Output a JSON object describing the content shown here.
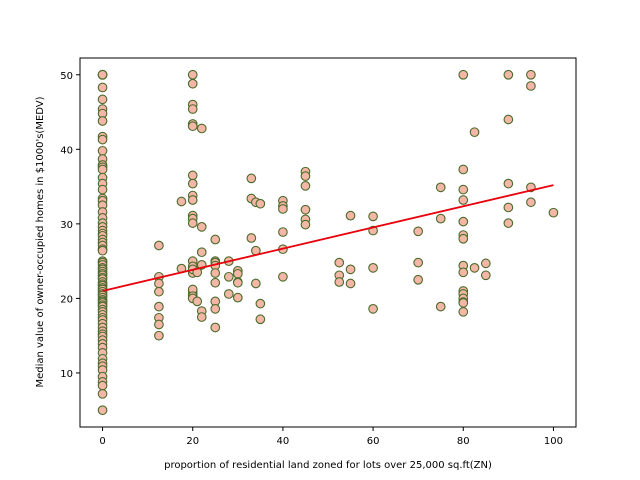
{
  "chart_data": {
    "type": "scatter",
    "title": "",
    "xlabel": "proportion of residential land zoned for lots over 25,000 sq.ft(ZN)",
    "ylabel": "Median value of owner-occupied homes in $1000's(MEDV)",
    "xlim": [
      -5,
      105
    ],
    "ylim": [
      2.75,
      52.25
    ],
    "xticks": [
      0,
      20,
      40,
      60,
      80,
      100
    ],
    "yticks": [
      10,
      20,
      30,
      40,
      50
    ],
    "grid": false,
    "legend": "none",
    "colors": {
      "marker_fill": "#f4b6a6",
      "marker_edge": "#4a6b2a",
      "fit_line": "#e8000b"
    },
    "series": [
      {
        "kind": "points",
        "x": [
          0,
          0,
          0,
          0,
          0,
          0,
          0,
          0,
          0,
          0,
          0,
          0,
          0,
          0,
          0,
          0,
          0,
          0,
          0,
          0,
          0,
          0,
          0,
          0,
          0,
          0,
          0,
          0,
          0,
          0,
          0,
          0,
          0,
          0,
          0,
          0,
          0,
          0,
          0,
          0,
          0,
          0,
          0,
          0,
          0,
          0,
          0,
          0,
          0,
          0,
          0,
          0,
          0,
          0,
          0,
          0,
          0,
          0,
          0,
          0,
          0,
          0,
          0,
          0,
          0,
          0,
          0,
          0,
          0,
          0,
          0,
          0,
          0,
          0,
          0,
          0,
          0,
          0,
          0,
          0,
          12.5,
          12.5,
          12.5,
          12.5,
          12.5,
          12.5,
          12.5,
          12.5,
          17.5,
          17.5,
          20,
          20,
          20,
          20,
          20,
          20,
          20,
          20,
          20,
          20,
          20,
          20,
          20,
          20,
          20,
          20,
          20,
          20,
          20,
          20,
          20,
          20,
          20,
          21,
          21,
          22,
          22,
          22,
          22,
          22,
          22,
          25,
          25,
          25,
          25,
          25,
          25,
          25,
          25,
          25,
          28,
          28,
          28,
          30,
          30,
          30,
          30,
          30,
          33,
          33,
          33,
          34,
          34,
          34,
          35,
          35,
          35,
          40,
          40,
          40,
          40,
          40,
          40,
          45,
          45,
          45,
          45,
          45,
          45,
          52.5,
          52.5,
          52.5,
          55,
          55,
          55,
          60,
          60,
          60,
          60,
          70,
          70,
          70,
          75,
          75,
          75,
          80,
          80,
          80,
          80,
          80,
          80,
          80,
          80,
          80,
          80,
          80,
          80,
          80,
          80,
          80,
          82.5,
          82.5,
          85,
          85,
          90,
          90,
          90,
          90,
          90,
          95,
          95,
          95,
          95,
          100
        ],
        "y": [
          50,
          50,
          50,
          48.3,
          46.7,
          45.4,
          44.8,
          43.8,
          41.7,
          41.3,
          39.8,
          38.7,
          37.9,
          37.6,
          37.3,
          36.2,
          35.4,
          34.6,
          33.4,
          33.1,
          32.5,
          31.6,
          30.8,
          30.1,
          29.6,
          29.1,
          28.7,
          28.4,
          27.9,
          27.5,
          27.1,
          26.6,
          26.4,
          25.0,
          24.8,
          24.5,
          24.1,
          23.9,
          23.6,
          23.3,
          23.1,
          22.8,
          22.6,
          22.2,
          21.9,
          21.7,
          21.4,
          21.2,
          20.9,
          20.6,
          20.4,
          20.1,
          19.8,
          19.6,
          19.4,
          19.1,
          18.9,
          18.5,
          18.2,
          17.8,
          17.4,
          17.1,
          16.6,
          16.1,
          15.6,
          15.2,
          14.9,
          14.4,
          13.9,
          13.4,
          12.7,
          11.9,
          11.3,
          10.9,
          10.4,
          9.5,
          8.8,
          8.3,
          7.2,
          5.0,
          27.1,
          22.9,
          22.0,
          20.9,
          18.9,
          17.4,
          16.5,
          15.0,
          33.0,
          24.0,
          50,
          48.8,
          46.0,
          45.4,
          43.4,
          43.1,
          36.5,
          35.4,
          33.8,
          31.1,
          30.7,
          30.1,
          25.0,
          24.1,
          23.4,
          21.0,
          20.5,
          33.2,
          24.3,
          23.9,
          21.2,
          20.3,
          20.0,
          23.5,
          19.6,
          42.8,
          29.6,
          26.2,
          18.3,
          17.5,
          24.5,
          27.9,
          25.0,
          24.8,
          24.4,
          23.4,
          22.1,
          19.6,
          18.6,
          16.1,
          25.0,
          22.9,
          20.6,
          23.7,
          23.3,
          22.2,
          22.1,
          20.1,
          36.1,
          33.4,
          28.1,
          32.9,
          26.4,
          22.0,
          32.7,
          19.3,
          17.2,
          33.1,
          32.4,
          32.0,
          28.9,
          26.6,
          22.9,
          37.0,
          36.4,
          35.1,
          31.9,
          30.6,
          29.9,
          24.8,
          23.1,
          22.2,
          31.1,
          23.9,
          22.0,
          31.0,
          29.1,
          24.1,
          18.6,
          29.0,
          24.8,
          22.5,
          34.9,
          30.7,
          18.9,
          50,
          37.3,
          34.6,
          33.2,
          30.3,
          28.5,
          28.0,
          24.4,
          23.5,
          21.0,
          20.6,
          20.0,
          19.5,
          19.4,
          18.2,
          42.3,
          24.1,
          24.7,
          23.1,
          50,
          44.0,
          35.4,
          32.2,
          30.1,
          50,
          48.5,
          34.9,
          32.9,
          31.5
        ]
      },
      {
        "kind": "fit-line",
        "x": [
          0,
          100
        ],
        "y": [
          21.0,
          35.2
        ]
      }
    ]
  }
}
